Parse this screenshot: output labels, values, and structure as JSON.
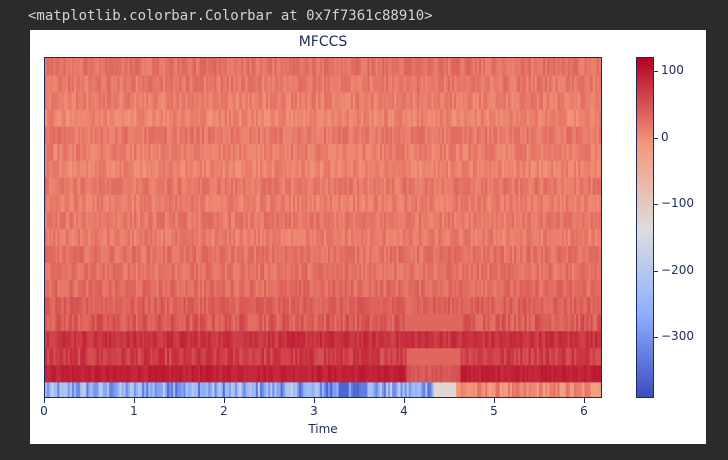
{
  "output": {
    "text": "<matplotlib.colorbar.Colorbar at 0x7f7361c88910>"
  },
  "chart_data": {
    "type": "heatmap",
    "title": "MFCCS",
    "xlabel": "Time",
    "ylabel": "",
    "xlim": [
      0,
      6.2
    ],
    "xticks": [
      "0",
      "1",
      "2",
      "3",
      "4",
      "5",
      "6"
    ],
    "xtick_values": [
      0,
      1,
      2,
      3,
      4,
      5,
      6
    ],
    "colorbar": {
      "vmin": -390,
      "vmax": 120,
      "ticks": [
        "100",
        "0",
        "−100",
        "−200",
        "−300"
      ],
      "tick_values": [
        100,
        0,
        -100,
        -200,
        -300
      ],
      "colormap": "coolwarm"
    },
    "rows": 20,
    "row_base_values": [
      -290,
      95,
      70,
      80,
      45,
      40,
      30,
      25,
      25,
      15,
      20,
      15,
      20,
      10,
      15,
      20,
      10,
      15,
      20,
      25
    ],
    "notes": "Row 0 is bottom MFCC coefficient; values estimated from colormap"
  },
  "colors": {
    "axis": "#1e2a5a",
    "background": "#2b2b2b",
    "figure": "#ffffff"
  }
}
